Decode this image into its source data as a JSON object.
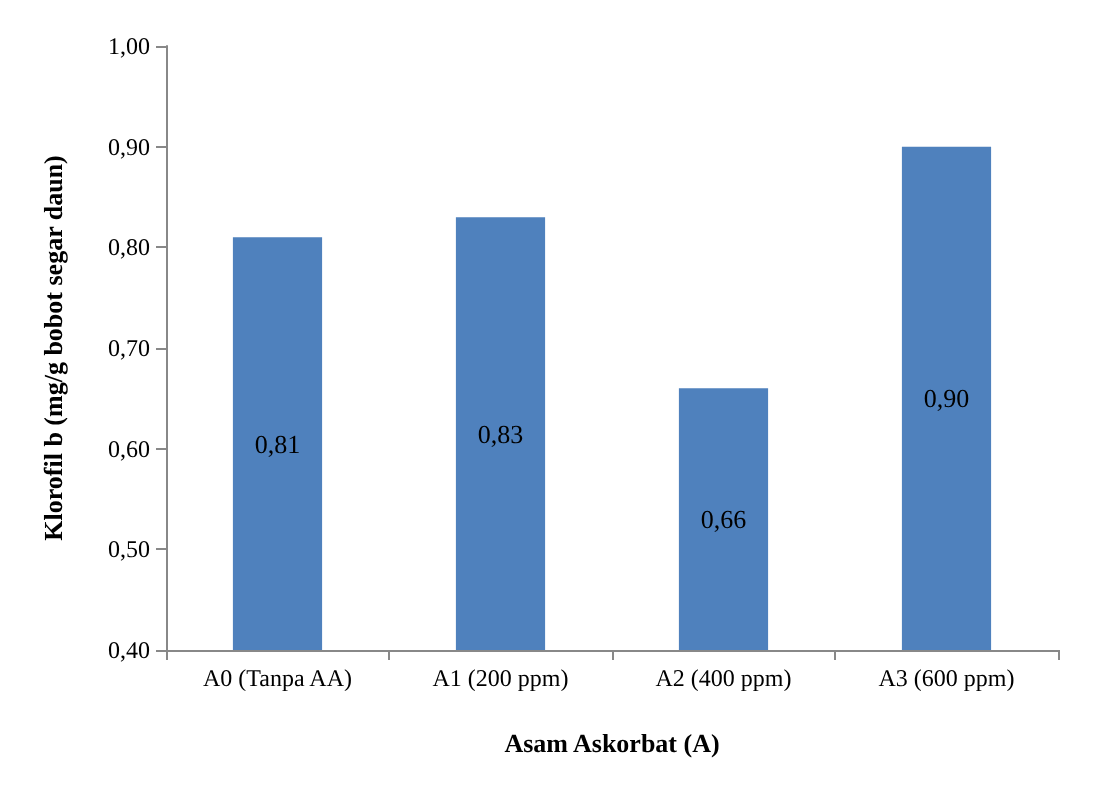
{
  "chart_data": {
    "type": "bar",
    "xlabel": "Asam Askorbat (A)",
    "ylabel": "Klorofil b (mg/g bobot segar daun)",
    "categories": [
      "A0 (Tanpa AA)",
      "A1 (200 ppm)",
      "A2 (400 ppm)",
      "A3 (600 ppm)"
    ],
    "values": [
      0.81,
      0.83,
      0.66,
      0.9
    ],
    "value_labels": [
      "0,81",
      "0,83",
      "0,66",
      "0,90"
    ],
    "color": "#4f81bd",
    "ylim": [
      0.4,
      1.0
    ],
    "yticks": [
      {
        "value": 0.4,
        "label": "0,40"
      },
      {
        "value": 0.5,
        "label": "0,50"
      },
      {
        "value": 0.6,
        "label": "0,60"
      },
      {
        "value": 0.7,
        "label": "0,70"
      },
      {
        "value": 0.8,
        "label": "0,80"
      },
      {
        "value": 0.9,
        "label": "0,90"
      },
      {
        "value": 1.0,
        "label": "1,00"
      }
    ],
    "grid": false
  }
}
